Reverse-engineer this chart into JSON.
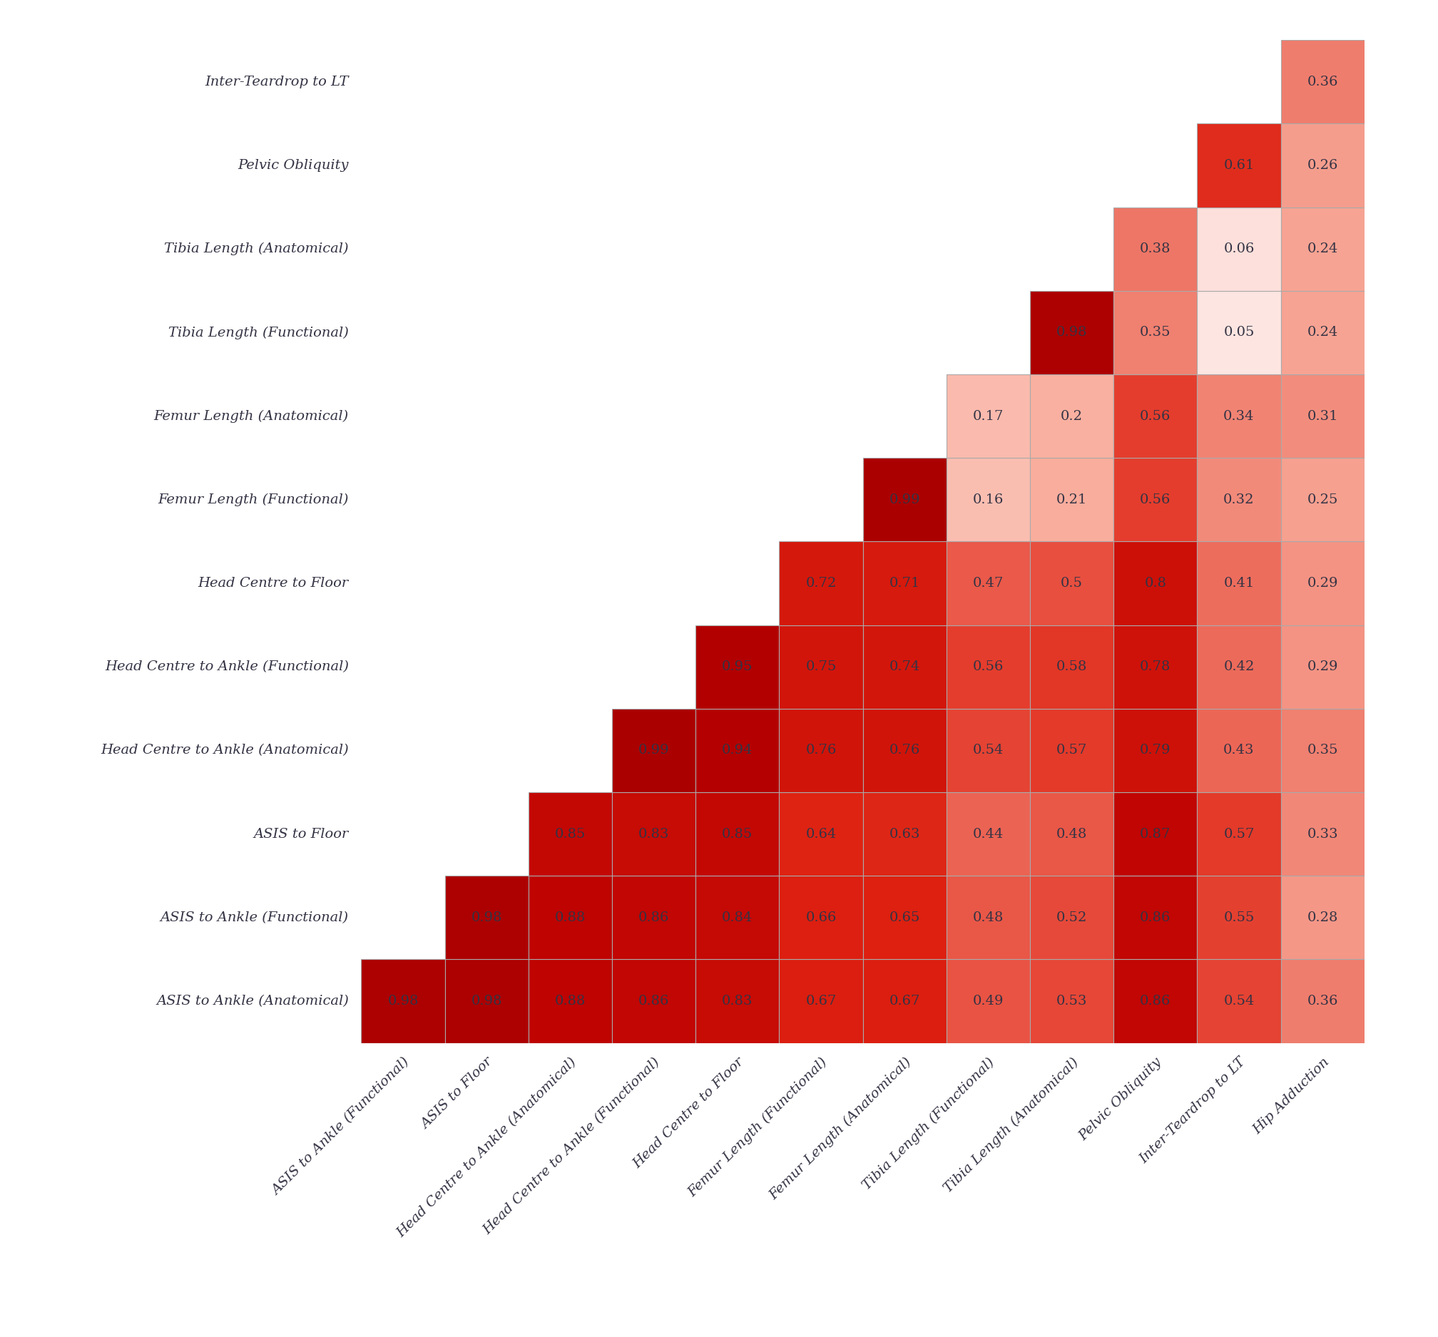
{
  "col_labels": [
    "ASIS to Ankle (Functional)",
    "ASIS to Floor",
    "Head Centre to Ankle (Anatomical)",
    "Head Centre to Ankle (Functional)",
    "Head Centre to Floor",
    "Femur Length (Functional)",
    "Femur Length (Anatomical)",
    "Tibia Length (Functional)",
    "Tibia Length (Anatomical)",
    "Pelvic Obliquity",
    "Inter-Teardrop to LT",
    "Hip Adduction"
  ],
  "row_labels": [
    "ASIS to Ankle (Anatomical)",
    "ASIS to Ankle (Functional)",
    "ASIS to Floor",
    "Head Centre to Ankle (Anatomical)",
    "Head Centre to Ankle (Functional)",
    "Head Centre to Floor",
    "Femur Length (Functional)",
    "Femur Length (Anatomical)",
    "Tibia Length (Functional)",
    "Tibia Length (Anatomical)",
    "Pelvic Obliquity",
    "Inter-Teardrop to LT"
  ],
  "corr_data": [
    [
      0.98,
      0.98,
      0.88,
      0.86,
      0.83,
      0.67,
      0.67,
      0.49,
      0.53,
      0.86,
      0.54,
      0.36
    ],
    [
      null,
      0.98,
      0.88,
      0.86,
      0.84,
      0.66,
      0.65,
      0.48,
      0.52,
      0.86,
      0.55,
      0.28
    ],
    [
      null,
      null,
      0.85,
      0.83,
      0.85,
      0.64,
      0.63,
      0.44,
      0.48,
      0.87,
      0.57,
      0.33
    ],
    [
      null,
      null,
      null,
      0.99,
      0.94,
      0.76,
      0.76,
      0.54,
      0.57,
      0.79,
      0.43,
      0.35
    ],
    [
      null,
      null,
      null,
      null,
      0.95,
      0.75,
      0.74,
      0.56,
      0.58,
      0.78,
      0.42,
      0.29
    ],
    [
      null,
      null,
      null,
      null,
      null,
      0.72,
      0.71,
      0.47,
      0.5,
      0.8,
      0.41,
      0.29
    ],
    [
      null,
      null,
      null,
      null,
      null,
      null,
      0.99,
      0.16,
      0.21,
      0.56,
      0.32,
      0.25
    ],
    [
      null,
      null,
      null,
      null,
      null,
      null,
      null,
      0.17,
      0.2,
      0.56,
      0.34,
      0.31
    ],
    [
      null,
      null,
      null,
      null,
      null,
      null,
      null,
      null,
      0.98,
      0.35,
      0.05,
      0.24
    ],
    [
      null,
      null,
      null,
      null,
      null,
      null,
      null,
      null,
      null,
      0.38,
      0.06,
      0.24
    ],
    [
      null,
      null,
      null,
      null,
      null,
      null,
      null,
      null,
      null,
      null,
      0.61,
      0.26
    ],
    [
      null,
      null,
      null,
      null,
      null,
      null,
      null,
      null,
      null,
      null,
      null,
      0.36
    ]
  ],
  "bg_color": "#ffffff",
  "text_color": "#333344",
  "cell_edge_color": "#aaaaaa",
  "fontsize_cell": 14,
  "fontsize_label": 14,
  "font_style": "italic",
  "font_family": "serif"
}
